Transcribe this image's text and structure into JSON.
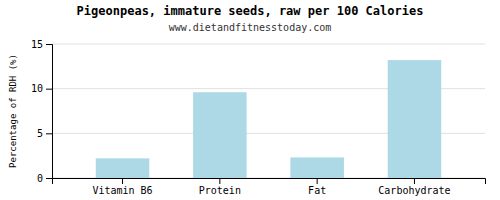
{
  "chart_data": {
    "type": "bar",
    "title": "Pigeonpeas, immature seeds, raw per 100 Calories",
    "subtitle": "www.dietandfitnesstoday.com",
    "categories": [
      "Vitamin B6",
      "Protein",
      "Fat",
      "Carbohydrate"
    ],
    "values": [
      2.2,
      9.6,
      2.3,
      13.2
    ],
    "color": "#add8e6",
    "ylabel": "Percentage of RDH (%)",
    "ylim": [
      0,
      15
    ],
    "yticks": [
      0,
      5,
      10,
      15
    ],
    "grid": true
  }
}
